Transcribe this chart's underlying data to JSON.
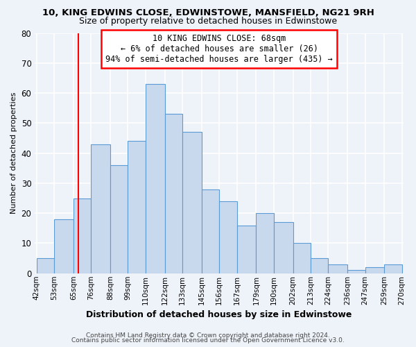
{
  "title": "10, KING EDWINS CLOSE, EDWINSTOWE, MANSFIELD, NG21 9RH",
  "subtitle": "Size of property relative to detached houses in Edwinstowe",
  "xlabel": "Distribution of detached houses by size in Edwinstowe",
  "ylabel": "Number of detached properties",
  "footer_line1": "Contains HM Land Registry data © Crown copyright and database right 2024.",
  "footer_line2": "Contains public sector information licensed under the Open Government Licence v3.0.",
  "annotation_line1": "10 KING EDWINS CLOSE: 68sqm",
  "annotation_line2": "← 6% of detached houses are smaller (26)",
  "annotation_line3": "94% of semi-detached houses are larger (435) →",
  "bar_values": [
    5,
    18,
    25,
    43,
    36,
    44,
    63,
    53,
    47,
    28,
    24,
    16,
    20,
    17,
    10,
    5,
    3,
    1,
    2,
    3
  ],
  "bin_labels": [
    "42sqm",
    "53sqm",
    "65sqm",
    "76sqm",
    "88sqm",
    "99sqm",
    "110sqm",
    "122sqm",
    "133sqm",
    "145sqm",
    "156sqm",
    "167sqm",
    "179sqm",
    "190sqm",
    "202sqm",
    "213sqm",
    "224sqm",
    "236sqm",
    "247sqm",
    "259sqm",
    "270sqm"
  ],
  "bar_color": "#c8d9ee",
  "bar_edge_color": "#5b9bd5",
  "background_color": "#eef2f9",
  "grid_color": "#ffffff",
  "red_line_x": 68,
  "ylim": [
    0,
    80
  ],
  "yticks": [
    0,
    10,
    20,
    30,
    40,
    50,
    60,
    70,
    80
  ],
  "bin_edges": [
    42,
    53,
    65,
    76,
    88,
    99,
    110,
    122,
    133,
    145,
    156,
    167,
    179,
    190,
    202,
    213,
    224,
    236,
    247,
    259,
    270
  ]
}
